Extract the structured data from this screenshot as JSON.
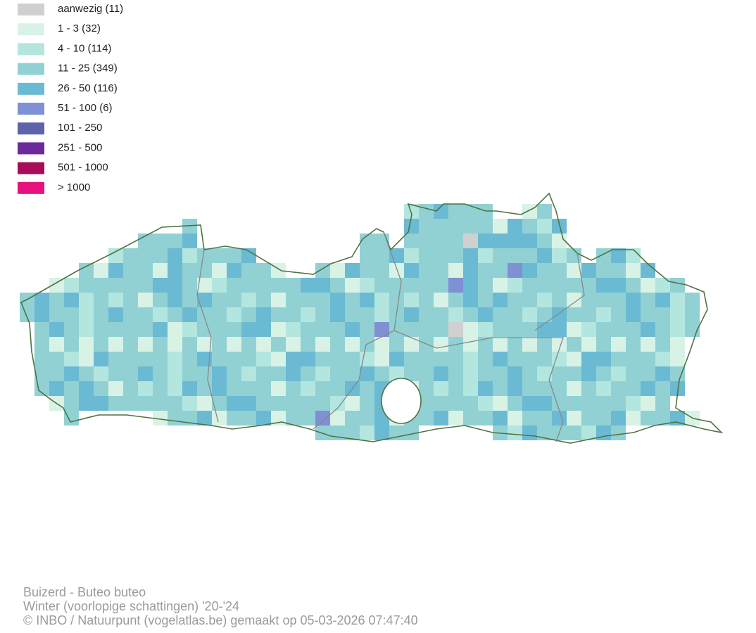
{
  "legend": [
    {
      "label": "aanwezig (11)",
      "color": "#d0d0d0"
    },
    {
      "label": "1 - 3 (32)",
      "color": "#d8f2e6"
    },
    {
      "label": "4 - 10 (114)",
      "color": "#b2e6df"
    },
    {
      "label": "11 - 25 (349)",
      "color": "#91d1d4"
    },
    {
      "label": "26 - 50 (116)",
      "color": "#6bbad3"
    },
    {
      "label": "51 - 100 (6)",
      "color": "#7f90d4"
    },
    {
      "label": "101 - 250",
      "color": "#5e62a8"
    },
    {
      "label": "251 - 500",
      "color": "#6a2a9c"
    },
    {
      "label": "501 - 1000",
      "color": "#a80c58"
    },
    {
      "label": "> 1000",
      "color": "#e8107e"
    }
  ],
  "footer": [
    "Buizerd - Buteo buteo",
    "Winter (voorlopige schattingen) '20-'24",
    "© INBO / Natuurpunt (vogelatlas.be) gemaakt op 05-03-2026 07:47:40"
  ]
}
